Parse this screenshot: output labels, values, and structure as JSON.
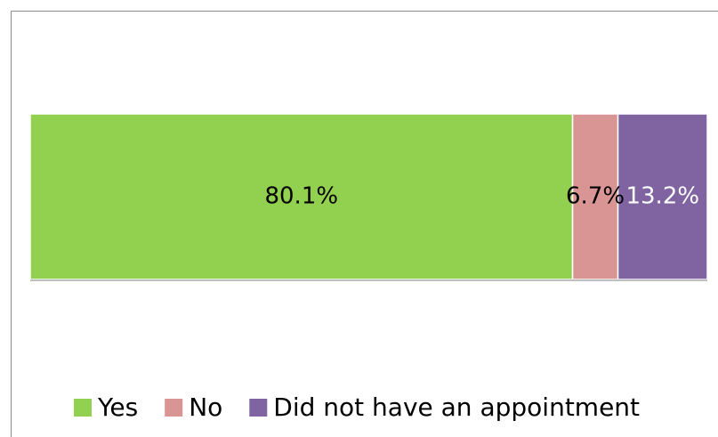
{
  "chart_data": {
    "type": "stacked_bar_horizontal",
    "categories": [
      null
    ],
    "series": [
      {
        "name": "Yes",
        "color": "#92d050",
        "values": [
          80.1
        ],
        "value_labels": [
          "80.1%"
        ],
        "label_color": "#000000"
      },
      {
        "name": "No",
        "color": "#d99594",
        "values": [
          6.7
        ],
        "value_labels": [
          "6.7%"
        ],
        "label_color": "#000000"
      },
      {
        "name": "Did not have an appointment",
        "color": "#8064a2",
        "values": [
          13.2
        ],
        "value_labels": [
          "13.2%"
        ],
        "label_color": "#ffffff"
      }
    ],
    "xlim": [
      0,
      100
    ],
    "legend": "bottom"
  }
}
